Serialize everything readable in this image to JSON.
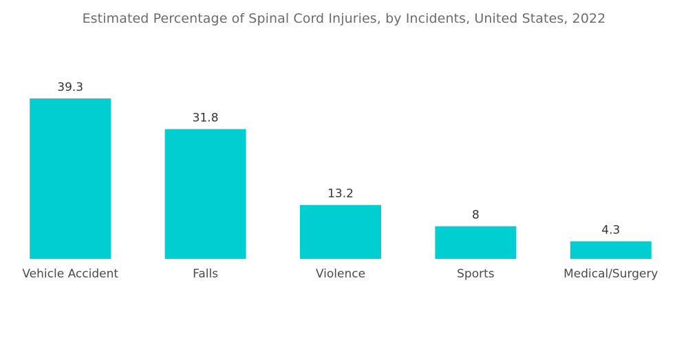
{
  "chart_data": {
    "type": "bar",
    "title": "Estimated Percentage of Spinal Cord Injuries, by Incidents, United States, 2022",
    "categories": [
      "Vehicle Accident",
      "Falls",
      "Violence",
      "Sports",
      "Medical/Surgery"
    ],
    "values": [
      39.3,
      31.8,
      13.2,
      8,
      4.3
    ],
    "value_labels": [
      "39.3",
      "31.8",
      "13.2",
      "8",
      "4.3"
    ],
    "xlabel": "",
    "ylabel": "",
    "ylim": [
      0,
      39.3
    ],
    "grid": false,
    "legend": "none",
    "bar_color": "#00CED1"
  }
}
